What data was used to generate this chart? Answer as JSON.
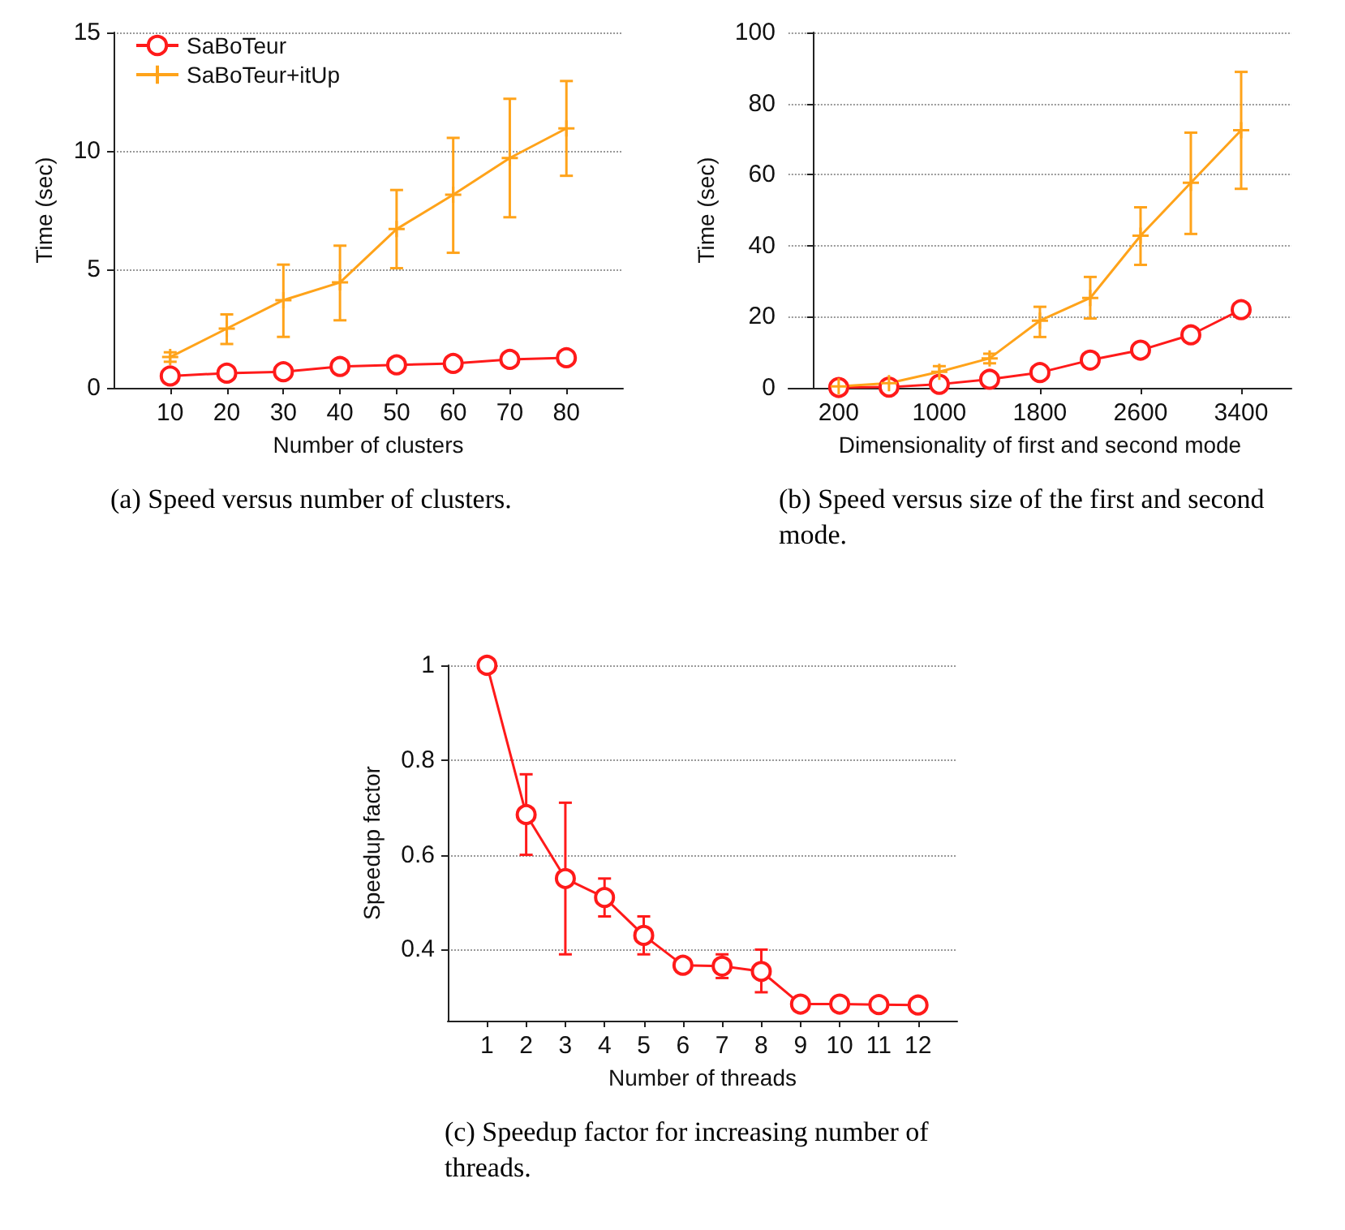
{
  "chart_data": [
    {
      "type": "line",
      "xlabel": "Number of clusters",
      "ylabel": "Time (sec)",
      "annotations": [
        "(a) Speed versus number of clusters."
      ],
      "x": [
        10,
        20,
        30,
        40,
        50,
        60,
        70,
        80
      ],
      "xlim": [
        0,
        90
      ],
      "xticks": [
        10,
        20,
        30,
        40,
        50,
        60,
        70,
        80
      ],
      "ylim": [
        0,
        15
      ],
      "yticks": [
        0,
        5,
        10,
        15
      ],
      "grid": "y",
      "legend": "top left",
      "series": [
        {
          "name": "SaBoTeur",
          "color": "#ff1a1a",
          "marker": "circle",
          "values": [
            0.5,
            0.62,
            0.68,
            0.9,
            0.97,
            1.03,
            1.2,
            1.27
          ]
        },
        {
          "name": "SaBoTeur+itUp",
          "color": "#ffa31a",
          "marker": "cross",
          "values": [
            1.3,
            2.5,
            3.7,
            4.45,
            6.7,
            8.15,
            9.7,
            10.95
          ],
          "errors": [
            [
              1.1,
              1.5
            ],
            [
              1.85,
              3.1
            ],
            [
              2.15,
              5.2
            ],
            [
              2.85,
              6.0
            ],
            [
              5.05,
              8.35
            ],
            [
              5.7,
              10.55
            ],
            [
              7.2,
              12.2
            ],
            [
              8.95,
              12.95
            ]
          ]
        }
      ]
    },
    {
      "type": "line",
      "xlabel": "Dimensionality of first and second mode",
      "ylabel": "Time (sec)",
      "annotations": [
        "(b) Speed versus size of the first and second mode."
      ],
      "x": [
        200,
        600,
        1000,
        1400,
        1800,
        2200,
        2600,
        3000,
        3400
      ],
      "xlim": [
        -200,
        3800
      ],
      "xticks": [
        200,
        1000,
        1800,
        2600,
        3400
      ],
      "ylim": [
        0,
        100
      ],
      "yticks": [
        0,
        20,
        40,
        60,
        80,
        100
      ],
      "grid": "y",
      "series": [
        {
          "color": "#ff1a1a",
          "marker": "circle",
          "values": [
            0.1,
            0.2,
            1.0,
            2.4,
            4.3,
            7.8,
            10.6,
            14.9,
            22
          ]
        },
        {
          "color": "#ffa31a",
          "marker": "cross",
          "values": [
            0.4,
            1.3,
            4.5,
            8.3,
            18.9,
            25.3,
            42.8,
            57.7,
            72.5
          ],
          "errors": [
            null,
            null,
            [
              2.9,
              6.1
            ],
            [
              6.9,
              9.6
            ],
            [
              14.3,
              22.8
            ],
            [
              19.5,
              31.2
            ],
            [
              34.6,
              50.8
            ],
            [
              43.3,
              71.8
            ],
            [
              56,
              88.9
            ]
          ]
        }
      ]
    },
    {
      "type": "line",
      "xlabel": "Number of threads",
      "ylabel": "Speedup factor",
      "annotations": [
        "(c) Speedup factor for increasing number of threads."
      ],
      "x": [
        1,
        2,
        3,
        4,
        5,
        6,
        7,
        8,
        9,
        10,
        11,
        12
      ],
      "xlim": [
        0,
        13
      ],
      "xticks": [
        1,
        2,
        3,
        4,
        5,
        6,
        7,
        8,
        9,
        10,
        11,
        12
      ],
      "ylim": [
        0.25,
        1
      ],
      "yticks": [
        0.4,
        0.6,
        0.8,
        1
      ],
      "grid": "y",
      "series": [
        {
          "color": "#ff1a1a",
          "marker": "circle",
          "values": [
            1.0,
            0.685,
            0.55,
            0.51,
            0.43,
            0.367,
            0.365,
            0.354,
            0.285,
            0.285,
            0.284,
            0.283
          ],
          "errors": [
            null,
            [
              0.6,
              0.77
            ],
            [
              0.39,
              0.71
            ],
            [
              0.47,
              0.55
            ],
            [
              0.39,
              0.47
            ],
            null,
            [
              0.34,
              0.39
            ],
            [
              0.31,
              0.4
            ],
            null,
            null,
            null,
            null
          ]
        }
      ]
    }
  ]
}
